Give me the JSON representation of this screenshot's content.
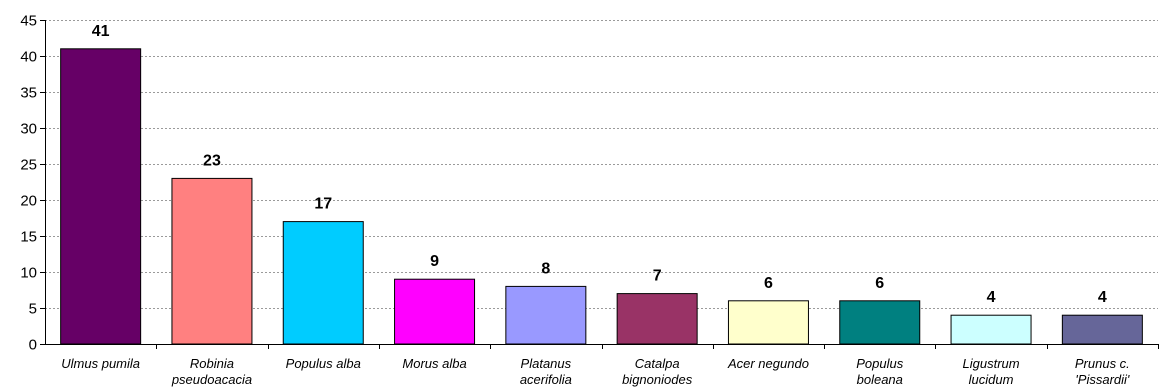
{
  "chart_data": {
    "type": "bar",
    "categories": [
      [
        "Ulmus pumila"
      ],
      [
        "Robinia",
        "pseudoacacia"
      ],
      [
        "Populus alba"
      ],
      [
        "Morus alba"
      ],
      [
        "Platanus",
        "acerifolia"
      ],
      [
        "Catalpa",
        "bignoniodes"
      ],
      [
        "Acer negundo"
      ],
      [
        "Populus",
        "boleana"
      ],
      [
        "Ligustrum",
        "lucidum"
      ],
      [
        "Prunus c.",
        "'Pissardii'"
      ]
    ],
    "values": [
      41,
      23,
      17,
      9,
      8,
      7,
      6,
      6,
      4,
      4
    ],
    "bar_colors": [
      "#660066",
      "#ff8080",
      "#00ccff",
      "#ff00ff",
      "#9999ff",
      "#993366",
      "#ffffcc",
      "#008080",
      "#ccffff",
      "#666699"
    ],
    "ylim": [
      0,
      45
    ],
    "yticks": [
      0,
      5,
      10,
      15,
      20,
      25,
      30,
      35,
      40,
      45
    ],
    "grid": true,
    "data_labels": true,
    "title": "",
    "xlabel": "",
    "ylabel": ""
  }
}
